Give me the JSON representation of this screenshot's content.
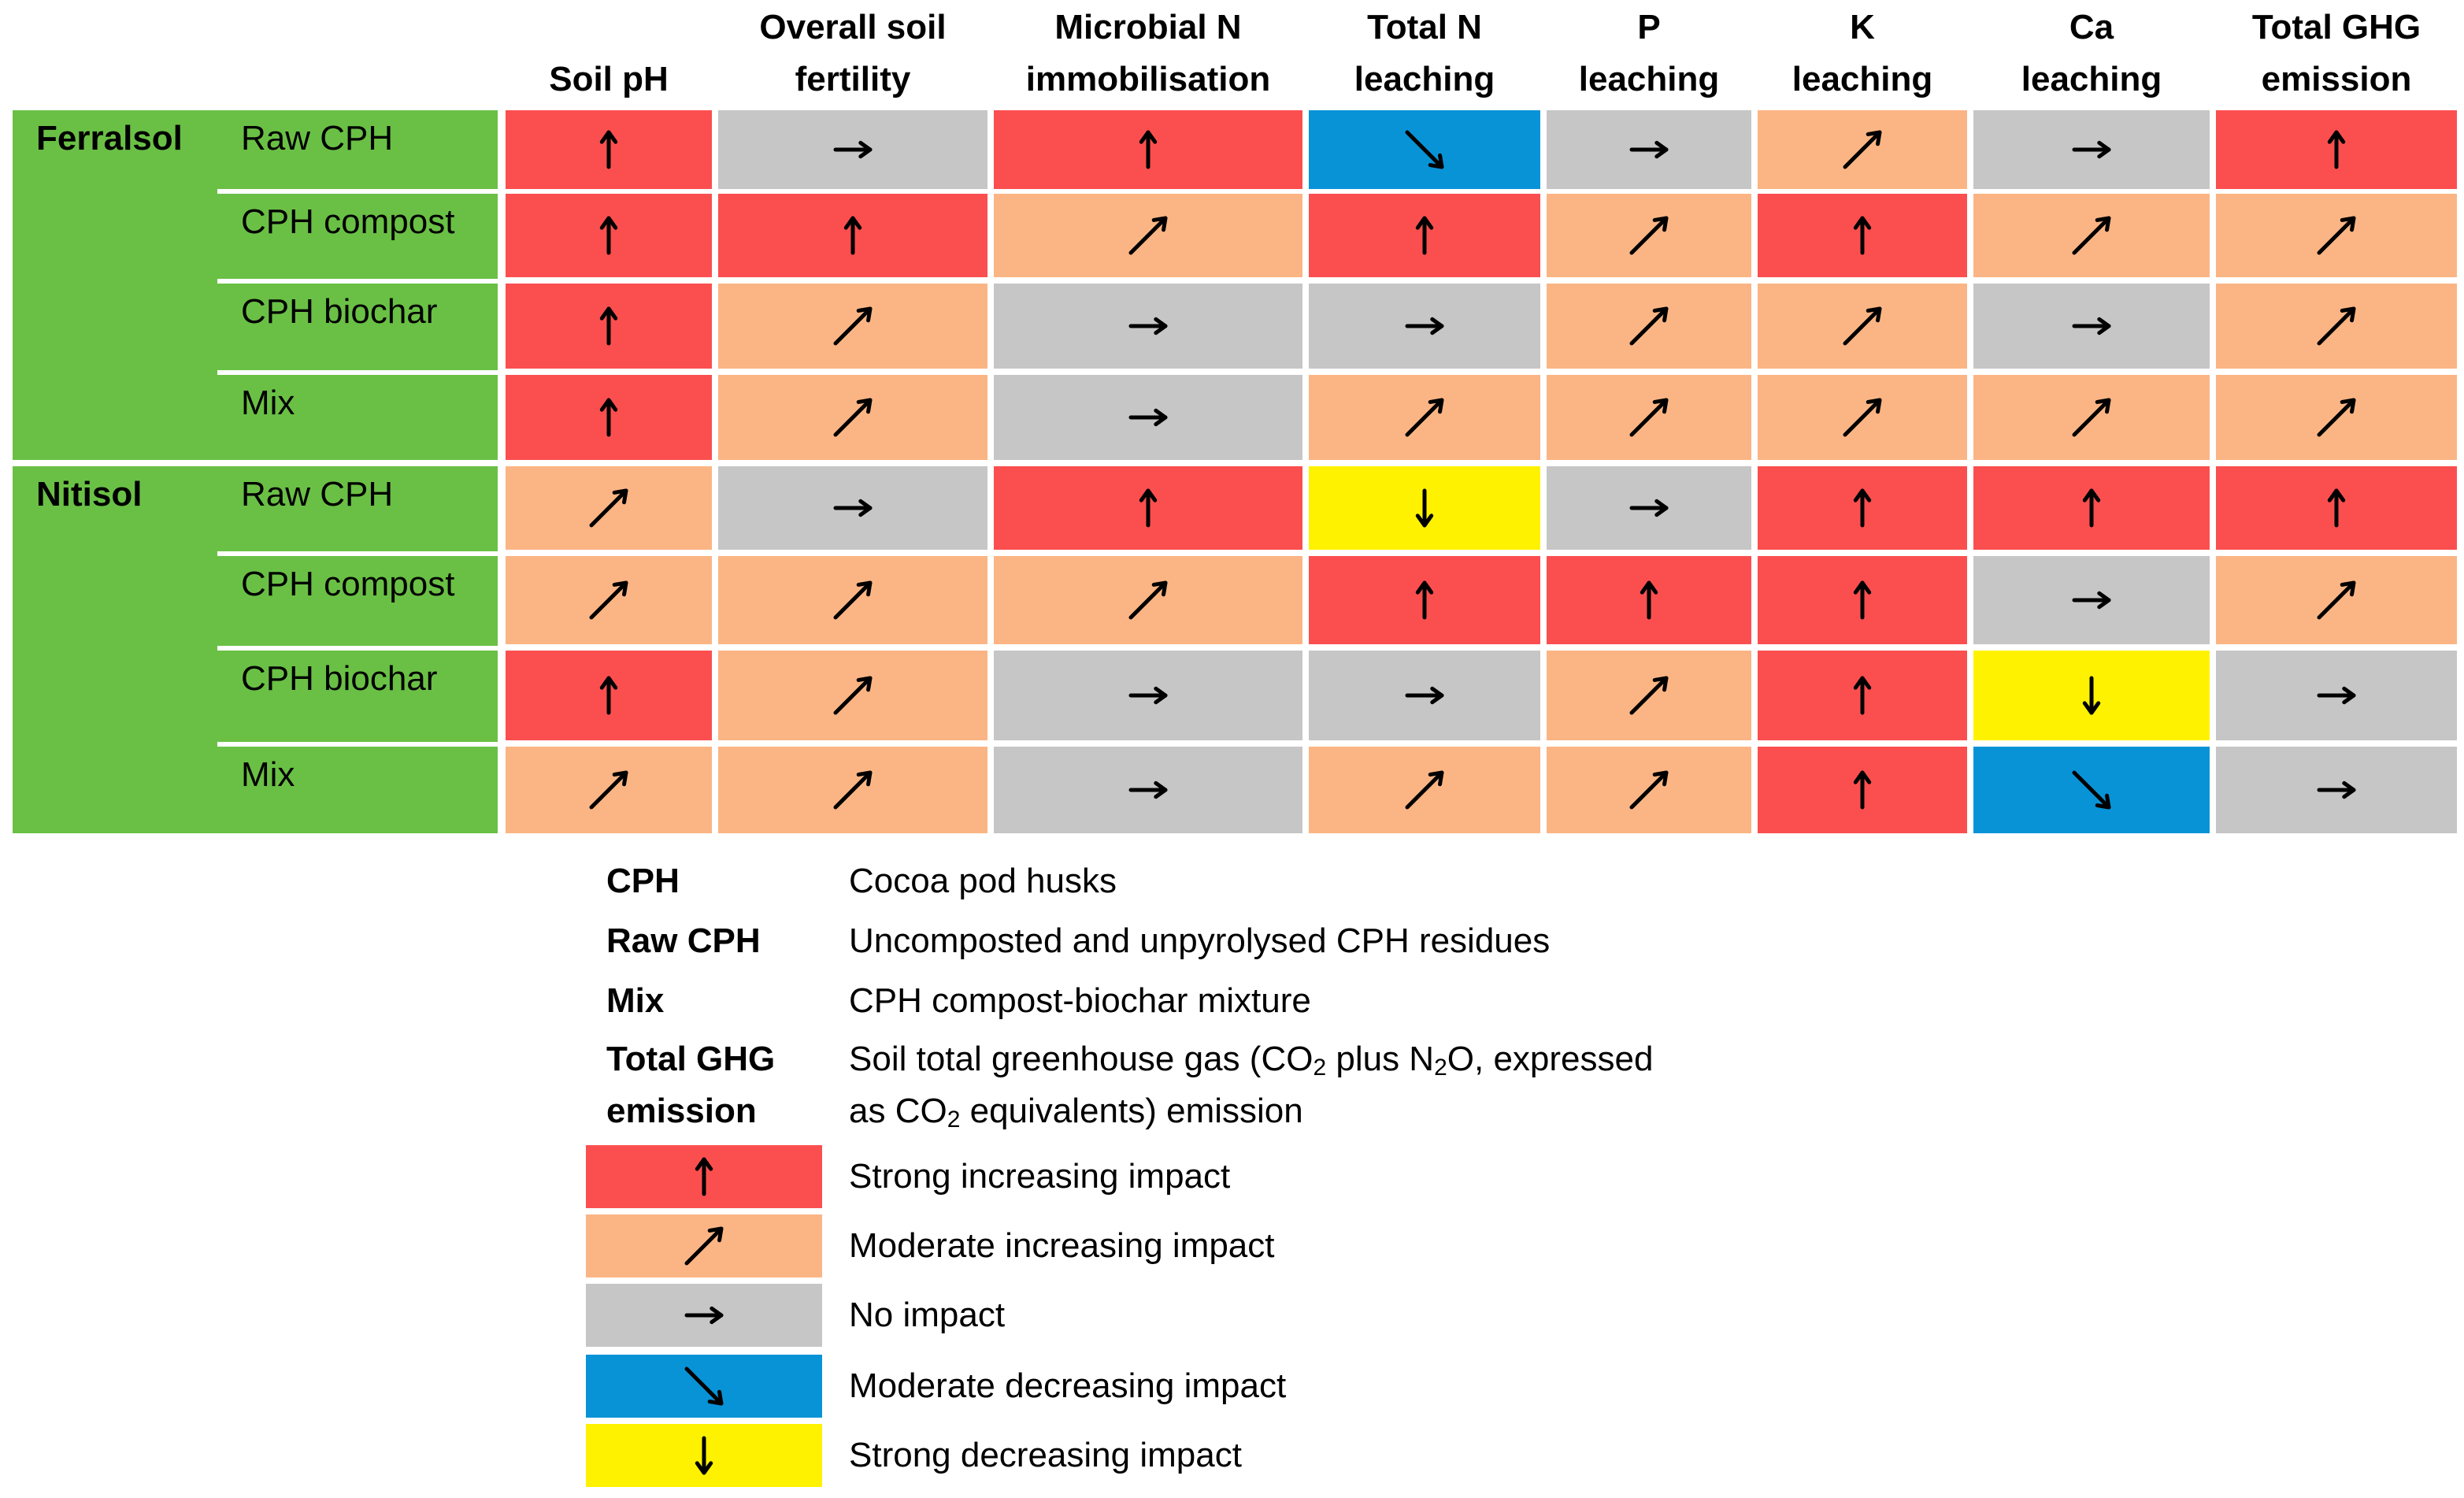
{
  "colors": {
    "strong_increase": "#fb4f4f",
    "moderate_increase": "#fbb584",
    "no_impact": "#c6c6c6",
    "moderate_decrease": "#0893d7",
    "strong_decrease": "#fff200",
    "soil_band": "#6ac045"
  },
  "impact_icons": {
    "strong_increase": "arrow-up-icon",
    "moderate_increase": "arrow-up-right-icon",
    "no_impact": "arrow-right-icon",
    "moderate_decrease": "arrow-down-right-icon",
    "strong_decrease": "arrow-down-icon"
  },
  "columns": [
    "Soil pH",
    "Overall soil\nfertility",
    "Microbial N\nimmobilisation",
    "Total N\nleaching",
    "P\nleaching",
    "K\nleaching",
    "Ca\nleaching",
    "Total GHG\nemission"
  ],
  "soils": [
    {
      "name": "Ferralsol",
      "rows": [
        {
          "treatment": "Raw CPH",
          "impacts": [
            "strong_increase",
            "no_impact",
            "strong_increase",
            "moderate_decrease",
            "no_impact",
            "moderate_increase",
            "no_impact",
            "strong_increase"
          ]
        },
        {
          "treatment": "CPH compost",
          "impacts": [
            "strong_increase",
            "strong_increase",
            "moderate_increase",
            "strong_increase",
            "moderate_increase",
            "strong_increase",
            "moderate_increase",
            "moderate_increase"
          ]
        },
        {
          "treatment": "CPH biochar",
          "impacts": [
            "strong_increase",
            "moderate_increase",
            "no_impact",
            "no_impact",
            "moderate_increase",
            "moderate_increase",
            "no_impact",
            "moderate_increase"
          ]
        },
        {
          "treatment": "Mix",
          "impacts": [
            "strong_increase",
            "moderate_increase",
            "no_impact",
            "moderate_increase",
            "moderate_increase",
            "moderate_increase",
            "moderate_increase",
            "moderate_increase"
          ]
        }
      ]
    },
    {
      "name": "Nitisol",
      "rows": [
        {
          "treatment": "Raw CPH",
          "impacts": [
            "moderate_increase",
            "no_impact",
            "strong_increase",
            "strong_decrease",
            "no_impact",
            "strong_increase",
            "strong_increase",
            "strong_increase"
          ]
        },
        {
          "treatment": "CPH compost",
          "impacts": [
            "moderate_increase",
            "moderate_increase",
            "moderate_increase",
            "strong_increase",
            "strong_increase",
            "strong_increase",
            "no_impact",
            "moderate_increase"
          ]
        },
        {
          "treatment": "CPH biochar",
          "impacts": [
            "strong_increase",
            "moderate_increase",
            "no_impact",
            "no_impact",
            "moderate_increase",
            "strong_increase",
            "strong_decrease",
            "no_impact"
          ]
        },
        {
          "treatment": "Mix",
          "impacts": [
            "moderate_increase",
            "moderate_increase",
            "no_impact",
            "moderate_increase",
            "moderate_increase",
            "strong_increase",
            "moderate_decrease",
            "no_impact"
          ]
        }
      ]
    }
  ],
  "legend": {
    "definitions": [
      {
        "term": "CPH",
        "definition": "Cocoa pod husks"
      },
      {
        "term": "Raw CPH",
        "definition": "Uncomposted and unpyrolysed CPH residues"
      },
      {
        "term": "Mix",
        "definition": "CPH compost-biochar mixture"
      }
    ],
    "ghg_term": "Total GHG\nemission",
    "ghg_definition_parts": [
      "Soil total greenhouse gas (CO",
      "2",
      " plus N",
      "2",
      "O, expressed",
      "as CO",
      "2",
      " equivalents) emission"
    ],
    "impacts": [
      {
        "key": "strong_increase",
        "label": "Strong increasing impact"
      },
      {
        "key": "moderate_increase",
        "label": "Moderate increasing impact"
      },
      {
        "key": "no_impact",
        "label": "No impact"
      },
      {
        "key": "moderate_decrease",
        "label": "Moderate decreasing impact"
      },
      {
        "key": "strong_decrease",
        "label": "Strong decreasing impact"
      }
    ]
  }
}
